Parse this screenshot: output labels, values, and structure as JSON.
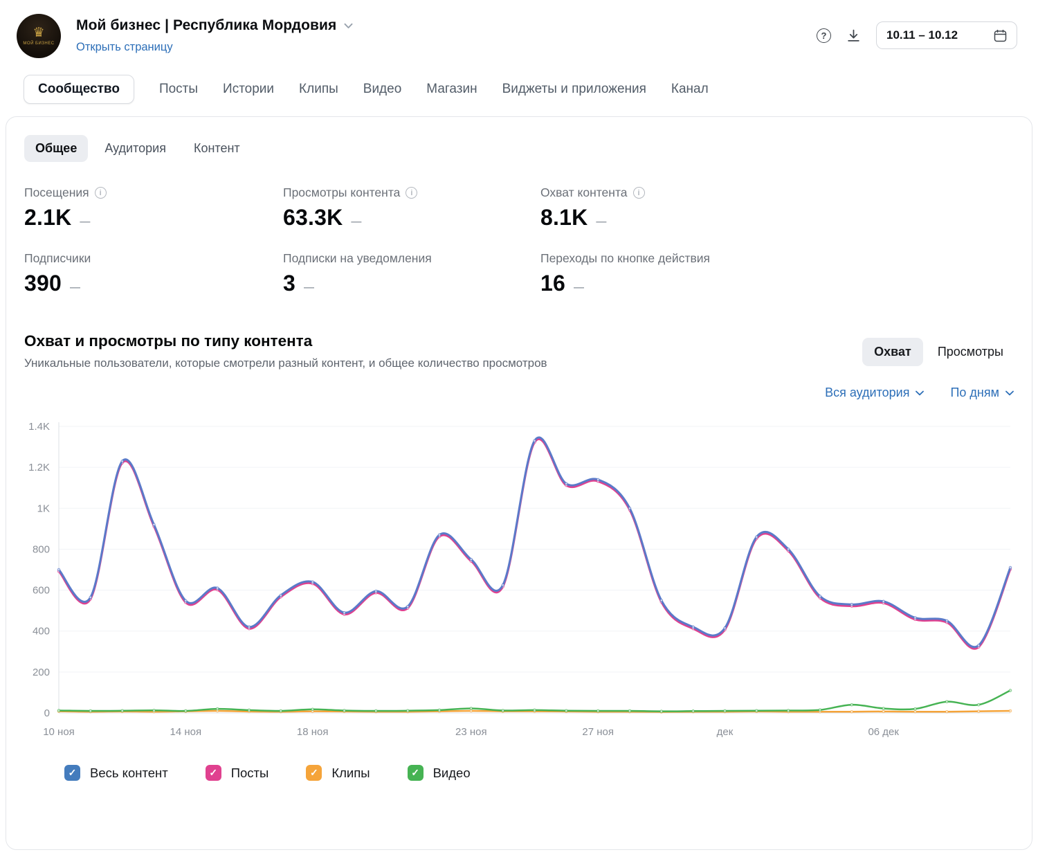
{
  "header": {
    "community_name": "Мой бизнес | Республика Мордовия",
    "open_page_link": "Открыть страницу",
    "date_range": "10.11 – 10.12",
    "avatar_text": "МОЙ БИЗНЕС"
  },
  "nav_tabs": [
    {
      "label": "Сообщество",
      "active": true
    },
    {
      "label": "Посты"
    },
    {
      "label": "Истории"
    },
    {
      "label": "Клипы"
    },
    {
      "label": "Видео"
    },
    {
      "label": "Магазин"
    },
    {
      "label": "Виджеты и приложения"
    },
    {
      "label": "Канал"
    }
  ],
  "sub_tabs": [
    {
      "label": "Общее",
      "active": true
    },
    {
      "label": "Аудитория"
    },
    {
      "label": "Контент"
    }
  ],
  "stats": [
    {
      "label": "Посещения",
      "value": "2.1K",
      "delta": "—",
      "info": true
    },
    {
      "label": "Просмотры контента",
      "value": "63.3K",
      "delta": "—",
      "info": true
    },
    {
      "label": "Охват контента",
      "value": "8.1K",
      "delta": "—",
      "info": true
    },
    {
      "label": "Подписчики",
      "value": "390",
      "delta": "—"
    },
    {
      "label": "Подписки на уведомления",
      "value": "3",
      "delta": "—"
    },
    {
      "label": "Переходы по кнопке действия",
      "value": "16",
      "delta": "—"
    }
  ],
  "section": {
    "title": "Охват и просмотры по типу контента",
    "subtitle": "Уникальные пользователи, которые смотрели разный контент, и общее количество просмотров",
    "mode_toggle": [
      {
        "label": "Охват",
        "active": true
      },
      {
        "label": "Просмотры"
      }
    ],
    "filters": [
      {
        "label": "Вся аудитория"
      },
      {
        "label": "По дням"
      }
    ]
  },
  "chart_data": {
    "type": "line",
    "ylim": [
      0,
      1400
    ],
    "grid": true,
    "legend_position": "bottom",
    "y_ticks": [
      {
        "value": 0,
        "label": "0"
      },
      {
        "value": 200,
        "label": "200"
      },
      {
        "value": 400,
        "label": "400"
      },
      {
        "value": 600,
        "label": "600"
      },
      {
        "value": 800,
        "label": "800"
      },
      {
        "value": 1000,
        "label": "1K"
      },
      {
        "value": 1200,
        "label": "1.2K"
      },
      {
        "value": 1400,
        "label": "1.4K"
      }
    ],
    "x_ticks": [
      {
        "index": 0,
        "label": "10 ноя"
      },
      {
        "index": 4,
        "label": "14 ноя"
      },
      {
        "index": 8,
        "label": "18 ноя"
      },
      {
        "index": 13,
        "label": "23 ноя"
      },
      {
        "index": 17,
        "label": "27 ноя"
      },
      {
        "index": 21,
        "label": "дек"
      },
      {
        "index": 26,
        "label": "06 дек"
      }
    ],
    "draw_order": [
      1,
      0,
      2,
      3
    ],
    "series": [
      {
        "name": "Весь контент",
        "color": "#5b7ac9",
        "width": 3,
        "values": [
          700,
          565,
          1230,
          920,
          548,
          610,
          420,
          575,
          640,
          490,
          595,
          520,
          870,
          750,
          625,
          1330,
          1120,
          1140,
          1000,
          550,
          420,
          415,
          860,
          800,
          570,
          530,
          545,
          465,
          450,
          330,
          710
        ]
      },
      {
        "name": "Посты",
        "color": "#e0418f",
        "width": 3,
        "values": [
          692,
          557,
          1222,
          912,
          540,
          602,
          412,
          567,
          632,
          482,
          587,
          512,
          862,
          742,
          617,
          1322,
          1112,
          1132,
          992,
          542,
          412,
          407,
          852,
          792,
          562,
          522,
          537,
          457,
          442,
          322,
          702
        ]
      },
      {
        "name": "Клипы",
        "color": "#f5a43a",
        "width": 2.5,
        "values": [
          8,
          6,
          7,
          6,
          8,
          10,
          7,
          6,
          8,
          7,
          6,
          6,
          8,
          10,
          8,
          8,
          7,
          6,
          6,
          5,
          6,
          6,
          7,
          6,
          6,
          6,
          7,
          6,
          6,
          8,
          10
        ]
      },
      {
        "name": "Видео",
        "color": "#46b353",
        "width": 2.5,
        "values": [
          12,
          10,
          11,
          13,
          10,
          20,
          14,
          10,
          18,
          12,
          10,
          11,
          14,
          22,
          12,
          14,
          11,
          10,
          10,
          8,
          9,
          10,
          11,
          12,
          15,
          40,
          22,
          20,
          55,
          40,
          110
        ]
      }
    ]
  },
  "legend": {
    "items": [
      {
        "label": "Весь контент",
        "color": "#447cbd",
        "checked": true
      },
      {
        "label": "Посты",
        "color": "#e0418f",
        "checked": true
      },
      {
        "label": "Клипы",
        "color": "#f5a43a",
        "checked": true
      },
      {
        "label": "Видео",
        "color": "#46b353",
        "checked": true
      }
    ]
  }
}
